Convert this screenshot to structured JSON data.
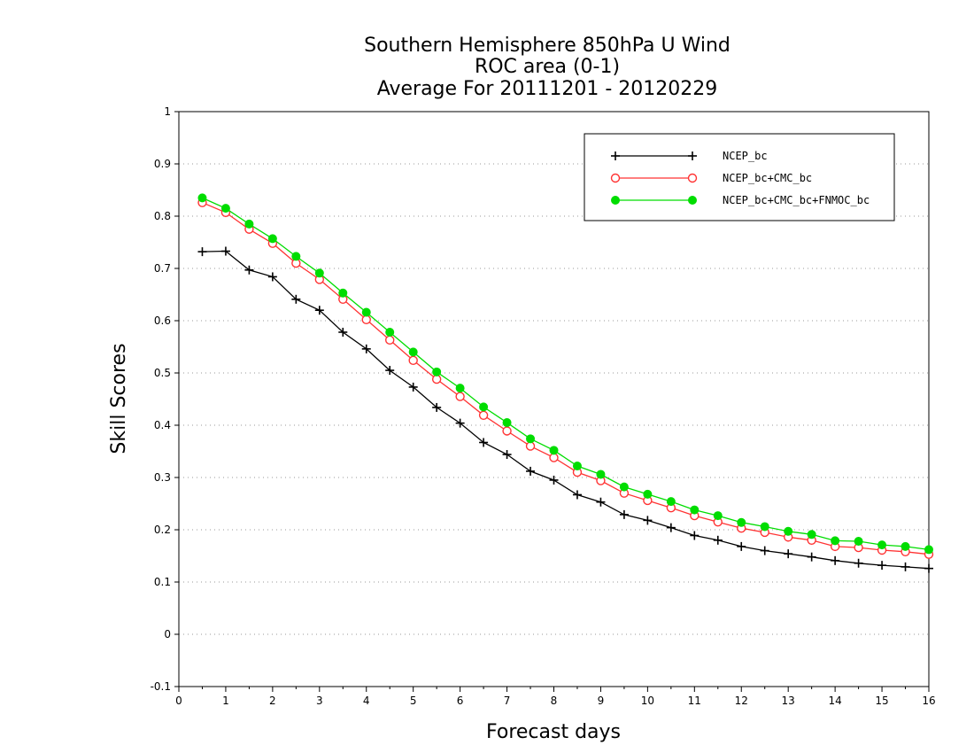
{
  "chart_data": {
    "type": "line",
    "title_lines": [
      "Southern Hemisphere 850hPa U Wind",
      "ROC area (0-1)",
      "Average For 20111201 - 20120229"
    ],
    "xlabel": "Forecast days",
    "ylabel": "Skill Scores",
    "xlim": [
      0,
      16
    ],
    "ylim": [
      -0.1,
      1
    ],
    "xticks": [
      0,
      1,
      2,
      3,
      4,
      5,
      6,
      7,
      8,
      9,
      10,
      11,
      12,
      13,
      14,
      15,
      16
    ],
    "xtick_labels": [
      "0",
      "1",
      "2",
      "3",
      "4",
      "5",
      "6",
      "7",
      "8",
      "9",
      "10",
      "11",
      "12",
      "13",
      "14",
      "15",
      "16"
    ],
    "yticks": [
      -0.1,
      0,
      0.1,
      0.2,
      0.3,
      0.4,
      0.5,
      0.6,
      0.7,
      0.8,
      0.9,
      1
    ],
    "ytick_labels": [
      "-0.1",
      "0",
      "0.1",
      "0.2",
      "0.3",
      "0.4",
      "0.5",
      "0.6",
      "0.7",
      "0.8",
      "0.9",
      "1"
    ],
    "grid": "horizontal dotted",
    "legend_position": "top-right",
    "x": [
      0.5,
      1,
      1.5,
      2,
      2.5,
      3,
      3.5,
      4,
      4.5,
      5,
      5.5,
      6,
      6.5,
      7,
      7.5,
      8,
      8.5,
      9,
      9.5,
      10,
      10.5,
      11,
      11.5,
      12,
      12.5,
      13,
      13.5,
      14,
      14.5,
      15,
      15.5,
      16
    ],
    "series": [
      {
        "name": "NCEP_bc",
        "color": "#000000",
        "marker": "plus",
        "values": [
          0.732,
          0.733,
          0.697,
          0.684,
          0.641,
          0.62,
          0.578,
          0.546,
          0.505,
          0.473,
          0.434,
          0.404,
          0.367,
          0.344,
          0.312,
          0.295,
          0.267,
          0.253,
          0.229,
          0.218,
          0.204,
          0.189,
          0.18,
          0.168,
          0.16,
          0.154,
          0.148,
          0.141,
          0.136,
          0.132,
          0.129,
          0.126
        ]
      },
      {
        "name": "NCEP_bc+CMC_bc",
        "color": "#ff3333",
        "marker": "open-circle",
        "values": [
          0.826,
          0.807,
          0.775,
          0.748,
          0.71,
          0.679,
          0.641,
          0.602,
          0.563,
          0.524,
          0.488,
          0.455,
          0.419,
          0.389,
          0.36,
          0.338,
          0.31,
          0.294,
          0.27,
          0.256,
          0.242,
          0.227,
          0.215,
          0.203,
          0.195,
          0.186,
          0.18,
          0.168,
          0.166,
          0.161,
          0.158,
          0.153
        ]
      },
      {
        "name": "NCEP_bc+CMC_bc+FNMOC_bc",
        "color": "#00dd00",
        "marker": "filled-circle",
        "values": [
          0.835,
          0.815,
          0.785,
          0.757,
          0.723,
          0.691,
          0.653,
          0.616,
          0.578,
          0.54,
          0.502,
          0.471,
          0.435,
          0.405,
          0.374,
          0.352,
          0.322,
          0.306,
          0.282,
          0.268,
          0.254,
          0.238,
          0.227,
          0.214,
          0.206,
          0.197,
          0.191,
          0.179,
          0.178,
          0.171,
          0.168,
          0.162
        ]
      }
    ]
  }
}
